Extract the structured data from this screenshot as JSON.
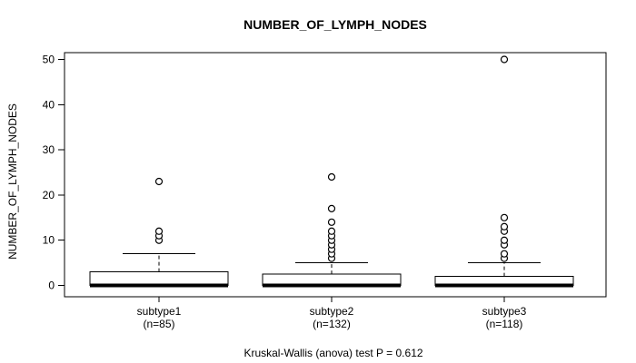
{
  "title": "NUMBER_OF_LYMPH_NODES",
  "caption": "Kruskal-Wallis (anova) test P = 0.612",
  "y_axis": {
    "label": "NUMBER_OF_LYMPH_NODES",
    "tick_labels": [
      "0",
      "10",
      "20",
      "30",
      "40",
      "50"
    ]
  },
  "colors": {
    "background": "#ffffff",
    "line": "#000000",
    "box_fill": "#ffffff",
    "text": "#000000"
  },
  "chart_data": {
    "type": "boxplot",
    "title": "NUMBER_OF_LYMPH_NODES",
    "ylabel": "NUMBER_OF_LYMPH_NODES",
    "xlabel": "",
    "caption": "Kruskal-Wallis (anova) test P = 0.612",
    "yticks": [
      0,
      10,
      20,
      30,
      40,
      50
    ],
    "ylim": [
      -2.5,
      51.5
    ],
    "grid": false,
    "legend": null,
    "groups": [
      {
        "label": "subtype1",
        "sublabel": "(n=85)",
        "n": 85,
        "whisker_low": 0,
        "q1": 0,
        "median": 0,
        "q3": 3,
        "whisker_high": 7,
        "outliers": [
          10,
          11,
          12,
          23
        ]
      },
      {
        "label": "subtype2",
        "sublabel": "(n=132)",
        "n": 132,
        "whisker_low": 0,
        "q1": 0,
        "median": 0,
        "q3": 2.5,
        "whisker_high": 5,
        "outliers": [
          6,
          7,
          8,
          9,
          10,
          11,
          12,
          14,
          17,
          24
        ]
      },
      {
        "label": "subtype3",
        "sublabel": "(n=118)",
        "n": 118,
        "whisker_low": 0,
        "q1": 0,
        "median": 0,
        "q3": 2,
        "whisker_high": 5,
        "outliers": [
          6,
          7,
          9,
          10,
          12,
          13,
          15,
          50
        ]
      }
    ]
  }
}
